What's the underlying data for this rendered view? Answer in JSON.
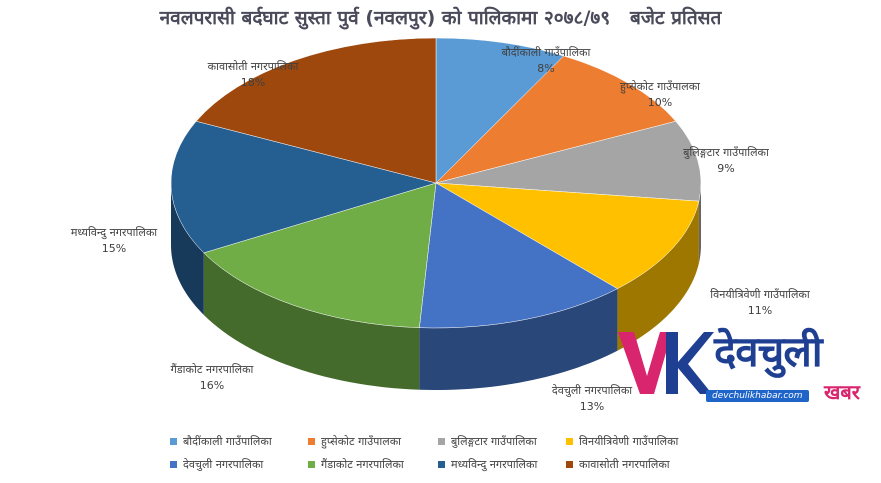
{
  "chart_data": {
    "type": "pie",
    "style": "3d",
    "title": "नवलपरासी बर्दघाट सुस्ता पुर्व (नवलपुर) को पालिकामा २०७८/७९   बजेट प्रतिसत",
    "legend_position": "bottom",
    "slices": [
      {
        "label": "बौदींकाली गाउँपालिका",
        "value": 8,
        "value_label": "8%",
        "color": "#5b9bd5"
      },
      {
        "label": "हुप्सेकोट गाउँपालका",
        "value": 10,
        "value_label": "10%",
        "color": "#ed7d31"
      },
      {
        "label": "बुलिङ्गटार गाउँपालिका",
        "value": 9,
        "value_label": "9%",
        "color": "#a5a5a5"
      },
      {
        "label": "विनयीत्रिवेणी गाउँपालिका",
        "value": 11,
        "value_label": "11%",
        "color": "#ffc000"
      },
      {
        "label": "देवचुली नगरपालिका",
        "value": 13,
        "value_label": "13%",
        "color": "#4472c4"
      },
      {
        "label": "गैंडाकोट नगरपालिका",
        "value": 16,
        "value_label": "16%",
        "color": "#70ad47"
      },
      {
        "label": "मध्यविन्दु नगरपालिका",
        "value": 15,
        "value_label": "15%",
        "color": "#255e91"
      },
      {
        "label": "कावासोती नगरपालिका",
        "value": 18,
        "value_label": "18%",
        "color": "#9e480e"
      }
    ]
  },
  "watermark": {
    "logo_letters": "VK",
    "wordmark": "देवचुली",
    "sub": "खबर",
    "url": "devchulikhabar.com"
  }
}
